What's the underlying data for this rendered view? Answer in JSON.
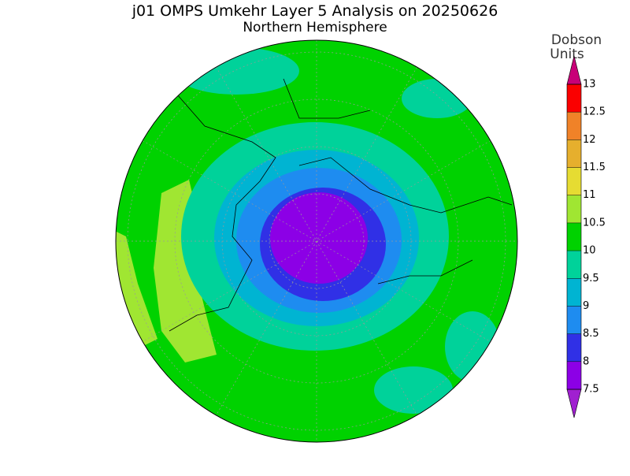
{
  "header": {
    "title": "j01 OMPS Umkehr Layer 5 Analysis on 20250626",
    "subtitle": "Northern Hemisphere"
  },
  "colorbar": {
    "label_lines": [
      "Dobson",
      "Units"
    ],
    "ticks": [
      7.5,
      8,
      8.5,
      9,
      9.5,
      10,
      10.5,
      11,
      11.5,
      12,
      12.5,
      13
    ],
    "colors": [
      "#a020d0",
      "#8c00e6",
      "#3030e6",
      "#1e8cf0",
      "#00b4d2",
      "#00d29a",
      "#00d200",
      "#a0e632",
      "#e6dc32",
      "#e6af2d",
      "#f08228",
      "#fa0000",
      "#c80078"
    ]
  }
}
